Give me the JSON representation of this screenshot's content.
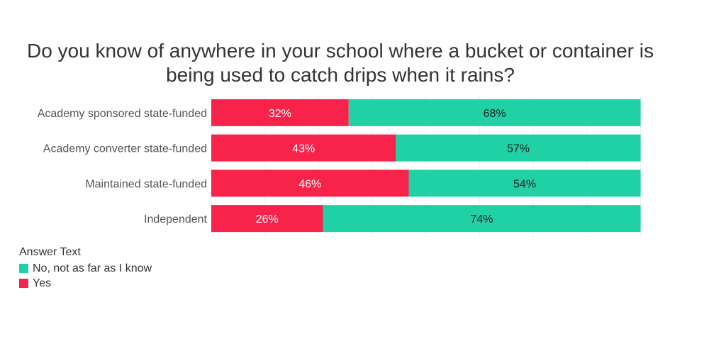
{
  "chart_data": {
    "type": "bar",
    "orientation": "horizontal",
    "stacked": true,
    "title": "Do you know of anywhere in your school where a bucket or container is being used to catch drips when it rains?",
    "categories": [
      "Academy sponsored state-funded",
      "Academy converter state-funded",
      "Maintained state-funded",
      "Independent"
    ],
    "series": [
      {
        "name": "Yes",
        "color": "#f8234a",
        "values": [
          32,
          43,
          46,
          26
        ]
      },
      {
        "name": "No, not as far as I know",
        "color": "#1fd1a5",
        "values": [
          68,
          57,
          54,
          74
        ]
      }
    ],
    "value_labels": {
      "Yes": [
        "32%",
        "43%",
        "46%",
        "26%"
      ],
      "No, not as far as I know": [
        "68%",
        "57%",
        "54%",
        "74%"
      ]
    },
    "xlim": [
      0,
      100
    ],
    "grid": true,
    "legend": {
      "title": "Answer Text",
      "placement": "bottom-left",
      "items": [
        {
          "label": "No, not as far as I know",
          "color": "#1fd1a5"
        },
        {
          "label": "Yes",
          "color": "#f8234a"
        }
      ]
    }
  }
}
